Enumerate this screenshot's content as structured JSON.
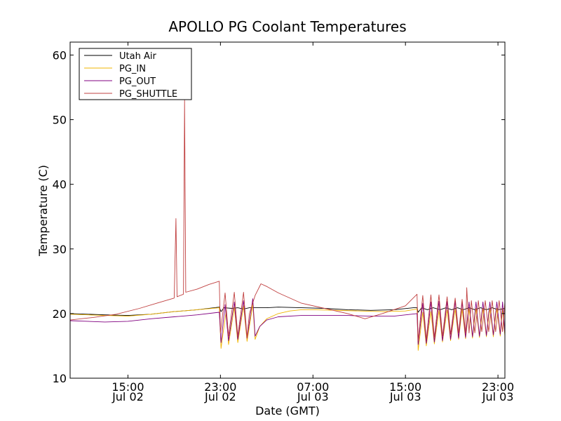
{
  "chart_data": {
    "type": "line",
    "title": "APOLLO PG Coolant Temperatures",
    "xlabel": "Date (GMT)",
    "ylabel": "Temperature (C)",
    "xlim": [
      10.0,
      47.6
    ],
    "ylim": [
      10,
      62
    ],
    "x_unit": "hours since Jul 02 00:00 GMT",
    "yticks": [
      10,
      20,
      30,
      40,
      50,
      60
    ],
    "xticks": [
      {
        "value": 15,
        "line1": "15:00",
        "line2": "Jul 02"
      },
      {
        "value": 23,
        "line1": "23:00",
        "line2": "Jul 02"
      },
      {
        "value": 31,
        "line1": "07:00",
        "line2": "Jul 03"
      },
      {
        "value": 39,
        "line1": "15:00",
        "line2": "Jul 03"
      },
      {
        "value": 47,
        "line1": "23:00",
        "line2": "Jul 03"
      }
    ],
    "legend_position": "top-left",
    "series": [
      {
        "name": "Utah Air",
        "color": "#000000",
        "points": [
          [
            10,
            20.0
          ],
          [
            13,
            19.8
          ],
          [
            15,
            19.7
          ],
          [
            17,
            19.9
          ],
          [
            19,
            20.3
          ],
          [
            21,
            20.6
          ],
          [
            22.9,
            21.0
          ],
          [
            23.05,
            20.3
          ],
          [
            23.3,
            20.9
          ],
          [
            24,
            20.8
          ],
          [
            24.5,
            20.9
          ],
          [
            25,
            20.7
          ],
          [
            25.5,
            20.9
          ],
          [
            26,
            20.9
          ],
          [
            27,
            20.9
          ],
          [
            28,
            21.0
          ],
          [
            30,
            20.9
          ],
          [
            32,
            20.8
          ],
          [
            34,
            20.6
          ],
          [
            36,
            20.5
          ],
          [
            38,
            20.6
          ],
          [
            39.7,
            20.9
          ],
          [
            40.0,
            20.9
          ],
          [
            40.1,
            20.2
          ],
          [
            40.4,
            20.9
          ],
          [
            40.9,
            20.6
          ],
          [
            41.4,
            20.9
          ],
          [
            42,
            20.6
          ],
          [
            42.5,
            20.9
          ],
          [
            43,
            20.6
          ],
          [
            43.5,
            20.9
          ],
          [
            44,
            20.6
          ],
          [
            44.5,
            20.9
          ],
          [
            45,
            20.6
          ],
          [
            45.5,
            20.9
          ],
          [
            46,
            20.6
          ],
          [
            46.5,
            20.9
          ],
          [
            47,
            20.6
          ],
          [
            47.6,
            20.8
          ]
        ]
      },
      {
        "name": "PG_IN",
        "color": "#f0b400",
        "points": [
          [
            10,
            19.9
          ],
          [
            13,
            19.7
          ],
          [
            15,
            19.6
          ],
          [
            17,
            19.9
          ],
          [
            19,
            20.3
          ],
          [
            21,
            20.6
          ],
          [
            22.9,
            20.9
          ],
          [
            23.05,
            14.6
          ],
          [
            23.5,
            20.5
          ],
          [
            23.7,
            15.2
          ],
          [
            24.2,
            21.0
          ],
          [
            24.5,
            15.5
          ],
          [
            25,
            21.2
          ],
          [
            25.3,
            15.7
          ],
          [
            25.8,
            21.4
          ],
          [
            26.0,
            16.0
          ],
          [
            26.4,
            18.0
          ],
          [
            27,
            19.2
          ],
          [
            28,
            20.0
          ],
          [
            29,
            20.4
          ],
          [
            30,
            20.6
          ],
          [
            31,
            20.6
          ],
          [
            33,
            20.5
          ],
          [
            35,
            20.4
          ],
          [
            37,
            20.3
          ],
          [
            39,
            20.4
          ],
          [
            40.0,
            20.7
          ],
          [
            40.1,
            14.3
          ],
          [
            40.5,
            20.2
          ],
          [
            40.8,
            15.0
          ],
          [
            41.2,
            20.3
          ],
          [
            41.5,
            15.3
          ],
          [
            41.9,
            20.5
          ],
          [
            42.2,
            15.6
          ],
          [
            42.6,
            20.6
          ],
          [
            42.9,
            15.8
          ],
          [
            43.3,
            20.7
          ],
          [
            43.6,
            16.0
          ],
          [
            43.9,
            20.7
          ],
          [
            44.2,
            16.1
          ],
          [
            44.5,
            20.8
          ],
          [
            44.8,
            16.2
          ],
          [
            45.1,
            20.8
          ],
          [
            45.4,
            16.3
          ],
          [
            45.7,
            20.8
          ],
          [
            46.0,
            16.4
          ],
          [
            46.3,
            20.8
          ],
          [
            46.6,
            16.4
          ],
          [
            46.9,
            20.8
          ],
          [
            47.2,
            16.5
          ],
          [
            47.4,
            20.8
          ],
          [
            47.6,
            16.5
          ]
        ]
      },
      {
        "name": "PG_OUT",
        "color": "#800080",
        "points": [
          [
            10,
            18.9
          ],
          [
            13,
            18.7
          ],
          [
            15,
            18.8
          ],
          [
            17,
            19.2
          ],
          [
            19,
            19.5
          ],
          [
            21,
            19.8
          ],
          [
            22.9,
            20.2
          ],
          [
            23.05,
            15.5
          ],
          [
            23.4,
            21.4
          ],
          [
            23.7,
            15.8
          ],
          [
            24.2,
            21.8
          ],
          [
            24.5,
            16.0
          ],
          [
            25,
            22.0
          ],
          [
            25.3,
            16.2
          ],
          [
            25.8,
            22.3
          ],
          [
            26.0,
            16.5
          ],
          [
            26.4,
            18.0
          ],
          [
            27,
            19.0
          ],
          [
            28,
            19.5
          ],
          [
            30,
            19.7
          ],
          [
            32,
            19.7
          ],
          [
            34,
            19.7
          ],
          [
            36,
            19.6
          ],
          [
            38,
            19.6
          ],
          [
            40.0,
            20.0
          ],
          [
            40.1,
            15.2
          ],
          [
            40.5,
            21.6
          ],
          [
            40.8,
            15.4
          ],
          [
            41.2,
            21.8
          ],
          [
            41.5,
            15.6
          ],
          [
            41.9,
            21.9
          ],
          [
            42.2,
            15.8
          ],
          [
            42.6,
            21.9
          ],
          [
            42.9,
            16.0
          ],
          [
            43.3,
            21.9
          ],
          [
            43.6,
            16.2
          ],
          [
            43.9,
            21.8
          ],
          [
            44.2,
            16.3
          ],
          [
            44.5,
            21.8
          ],
          [
            44.8,
            16.4
          ],
          [
            45.1,
            21.8
          ],
          [
            45.4,
            16.5
          ],
          [
            45.7,
            21.8
          ],
          [
            46.0,
            16.6
          ],
          [
            46.3,
            21.8
          ],
          [
            46.6,
            16.7
          ],
          [
            46.9,
            21.8
          ],
          [
            47.2,
            16.8
          ],
          [
            47.4,
            21.8
          ],
          [
            47.6,
            16.8
          ]
        ]
      },
      {
        "name": "PG_SHUTTLE",
        "color": "#c04040",
        "points": [
          [
            10,
            19.0
          ],
          [
            12,
            19.4
          ],
          [
            14,
            19.9
          ],
          [
            16,
            20.8
          ],
          [
            17.5,
            21.6
          ],
          [
            19,
            22.4
          ],
          [
            19.15,
            34.7
          ],
          [
            19.25,
            22.6
          ],
          [
            19.8,
            23.0
          ],
          [
            19.9,
            53.0
          ],
          [
            20.0,
            23.3
          ],
          [
            21,
            23.8
          ],
          [
            22,
            24.5
          ],
          [
            22.9,
            25.0
          ],
          [
            23.0,
            17.0
          ],
          [
            23.4,
            23.2
          ],
          [
            23.7,
            16.5
          ],
          [
            24.2,
            23.3
          ],
          [
            24.5,
            16.5
          ],
          [
            25,
            23.3
          ],
          [
            25.3,
            16.3
          ],
          [
            25.5,
            20.0
          ],
          [
            26,
            22.8
          ],
          [
            26.5,
            24.6
          ],
          [
            27,
            24.2
          ],
          [
            28,
            23.2
          ],
          [
            30,
            21.6
          ],
          [
            32,
            20.8
          ],
          [
            34,
            20.0
          ],
          [
            35.5,
            19.2
          ],
          [
            37,
            20.0
          ],
          [
            39,
            21.2
          ],
          [
            40.0,
            23.0
          ],
          [
            40.1,
            15.8
          ],
          [
            40.5,
            22.8
          ],
          [
            40.8,
            16.0
          ],
          [
            41.2,
            22.9
          ],
          [
            41.5,
            16.3
          ],
          [
            41.9,
            22.9
          ],
          [
            42.2,
            16.5
          ],
          [
            42.6,
            22.6
          ],
          [
            42.9,
            16.8
          ],
          [
            43.3,
            22.4
          ],
          [
            43.6,
            17.0
          ],
          [
            43.9,
            22.2
          ],
          [
            44.2,
            17.0
          ],
          [
            44.3,
            24.0
          ],
          [
            44.5,
            17.0
          ],
          [
            44.7,
            22.0
          ],
          [
            45.0,
            17.0
          ],
          [
            45.3,
            22.0
          ],
          [
            45.6,
            17.2
          ],
          [
            45.9,
            22.0
          ],
          [
            46.2,
            17.2
          ],
          [
            46.5,
            22.0
          ],
          [
            46.8,
            17.2
          ],
          [
            47.1,
            22.0
          ],
          [
            47.4,
            17.2
          ],
          [
            47.6,
            21.8
          ]
        ]
      }
    ]
  }
}
